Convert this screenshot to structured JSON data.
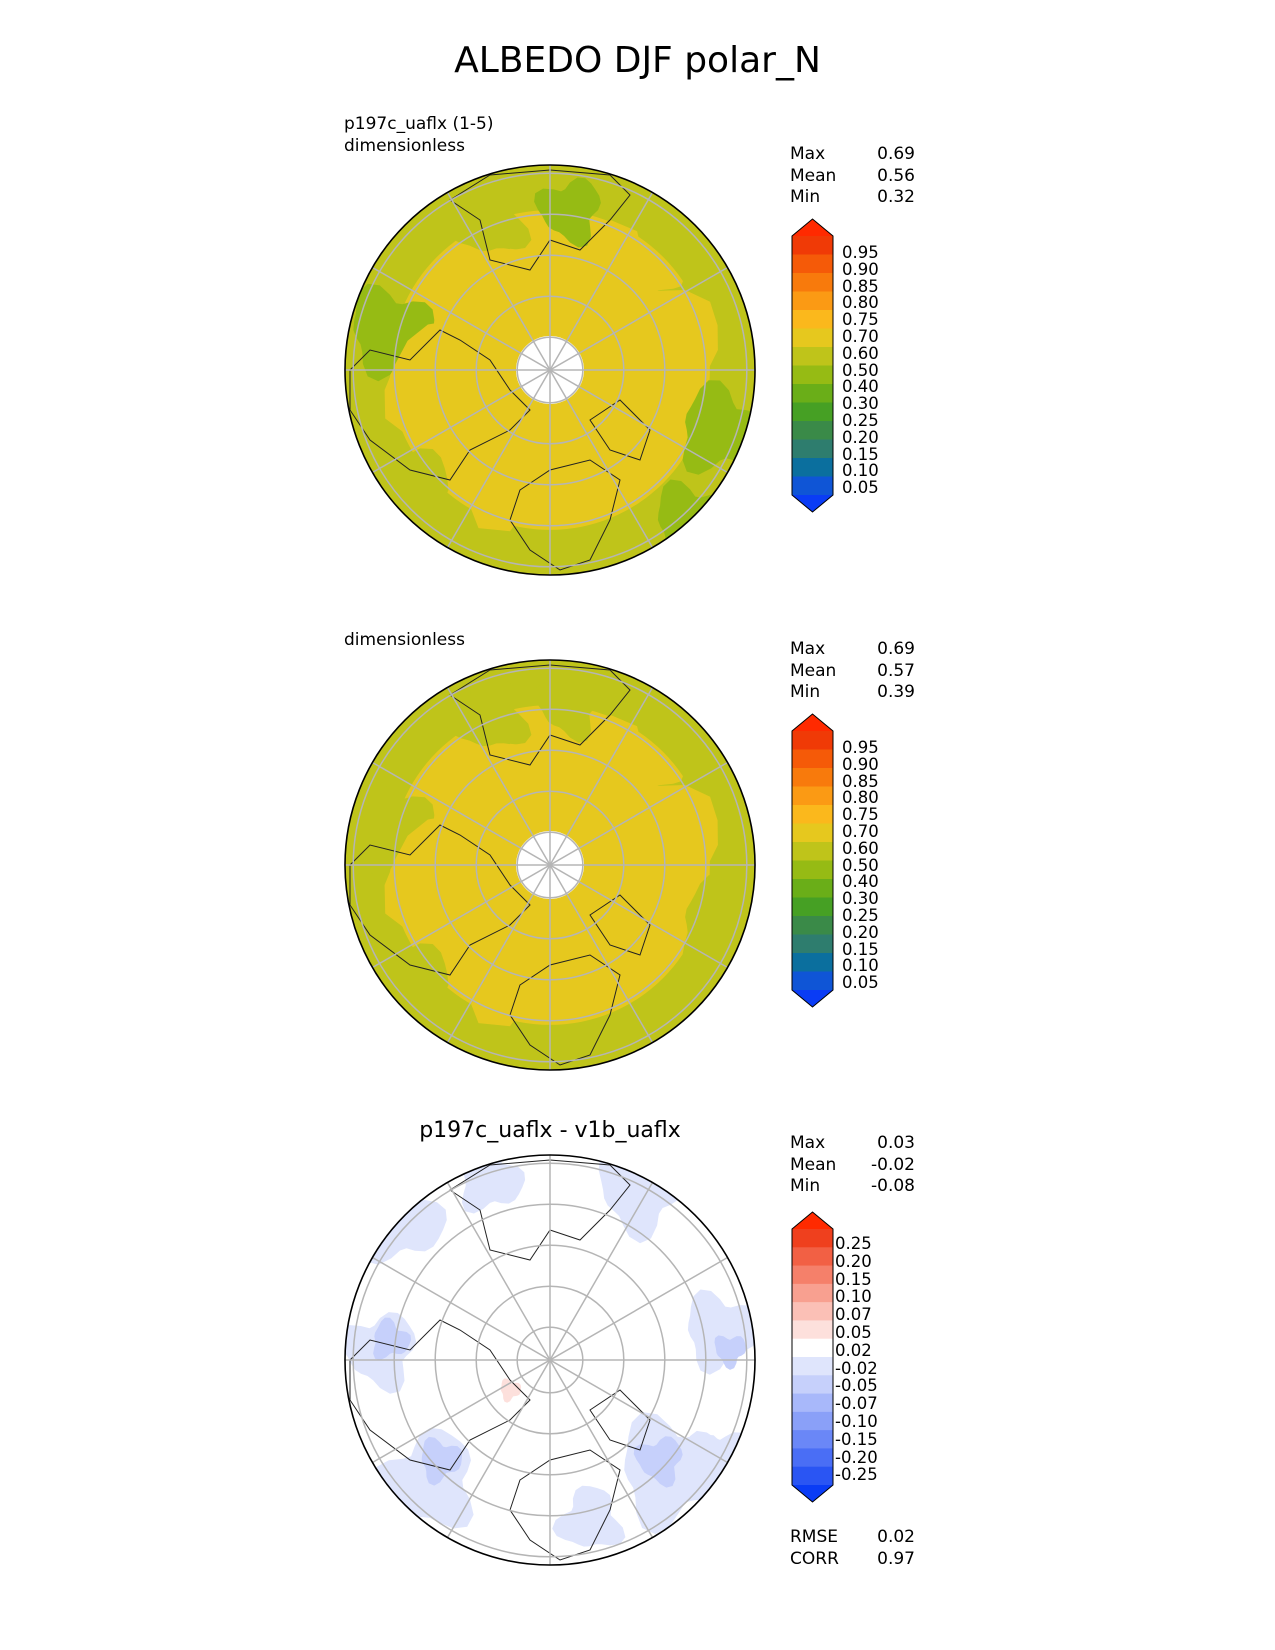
{
  "figure": {
    "title": "ALBEDO DJF polar_N"
  },
  "panels": [
    {
      "top_label_line1": "p197c_uaflx (1-5)",
      "top_label_line2": "dimensionless",
      "center_title": "",
      "stats": [
        {
          "label": "Max",
          "value": "0.69"
        },
        {
          "label": "Mean",
          "value": "0.56"
        },
        {
          "label": "Min",
          "value": "0.32"
        }
      ],
      "colorbar_ticks": [
        "0.95",
        "0.90",
        "0.85",
        "0.80",
        "0.75",
        "0.70",
        "0.60",
        "0.50",
        "0.40",
        "0.30",
        "0.25",
        "0.20",
        "0.15",
        "0.10",
        "0.05"
      ]
    },
    {
      "top_label_line1": "",
      "top_label_line2": "dimensionless",
      "center_title": "",
      "stats": [
        {
          "label": "Max",
          "value": "0.69"
        },
        {
          "label": "Mean",
          "value": "0.57"
        },
        {
          "label": "Min",
          "value": "0.39"
        }
      ],
      "colorbar_ticks": [
        "0.95",
        "0.90",
        "0.85",
        "0.80",
        "0.75",
        "0.70",
        "0.60",
        "0.50",
        "0.40",
        "0.30",
        "0.25",
        "0.20",
        "0.15",
        "0.10",
        "0.05"
      ]
    },
    {
      "top_label_line1": "",
      "top_label_line2": "",
      "center_title": "p197c_uaflx - v1b_uaflx",
      "stats": [
        {
          "label": "Max",
          "value": "0.03"
        },
        {
          "label": "Mean",
          "value": "-0.02"
        },
        {
          "label": "Min",
          "value": "-0.08"
        }
      ],
      "colorbar_ticks": [
        "0.25",
        "0.20",
        "0.15",
        "0.10",
        "0.07",
        "0.05",
        "0.02",
        "-0.02",
        "-0.05",
        "-0.07",
        "-0.10",
        "-0.15",
        "-0.20",
        "-0.25"
      ],
      "metrics": [
        {
          "label": "RMSE",
          "value": "0.02"
        },
        {
          "label": "CORR",
          "value": "0.97"
        }
      ]
    }
  ],
  "chart_data": [
    {
      "type": "heatmap",
      "projection": "north polar stereographic",
      "title": "p197c_uaflx (1-5)",
      "units": "dimensionless",
      "stats": {
        "max": 0.69,
        "mean": 0.56,
        "min": 0.32
      },
      "levels": [
        0.05,
        0.1,
        0.15,
        0.2,
        0.25,
        0.3,
        0.4,
        0.5,
        0.6,
        0.7,
        0.75,
        0.8,
        0.85,
        0.9,
        0.95
      ],
      "colors": [
        "#0a3cf5",
        "#0f55d6",
        "#0b6f9e",
        "#2e7d6e",
        "#3a8a48",
        "#46a024",
        "#6aae18",
        "#96bb14",
        "#bfc41a",
        "#e6c81e",
        "#fbb81c",
        "#fb9a14",
        "#f87a0c",
        "#f55a08",
        "#f03a06",
        "#ff2a00"
      ],
      "dominant_ranges": {
        "arctic_and_land": "0.60-0.70",
        "lower_latitudes": "0.50-0.60"
      }
    },
    {
      "type": "heatmap",
      "projection": "north polar stereographic",
      "units": "dimensionless",
      "stats": {
        "max": 0.69,
        "mean": 0.57,
        "min": 0.39
      },
      "levels": [
        0.05,
        0.1,
        0.15,
        0.2,
        0.25,
        0.3,
        0.4,
        0.5,
        0.6,
        0.7,
        0.75,
        0.8,
        0.85,
        0.9,
        0.95
      ],
      "colors": [
        "#0a3cf5",
        "#0f55d6",
        "#0b6f9e",
        "#2e7d6e",
        "#3a8a48",
        "#46a024",
        "#6aae18",
        "#96bb14",
        "#bfc41a",
        "#e6c81e",
        "#fbb81c",
        "#fb9a14",
        "#f87a0c",
        "#f55a08",
        "#f03a06",
        "#ff2a00"
      ],
      "dominant_ranges": {
        "arctic_and_land": "0.60-0.70",
        "lower_latitudes": "0.50-0.60"
      }
    },
    {
      "type": "heatmap",
      "projection": "north polar stereographic",
      "title": "p197c_uaflx - v1b_uaflx",
      "stats": {
        "max": 0.03,
        "mean": -0.02,
        "min": -0.08,
        "rmse": 0.02,
        "corr": 0.97
      },
      "levels": [
        -0.25,
        -0.2,
        -0.15,
        -0.1,
        -0.07,
        -0.05,
        -0.02,
        0.02,
        0.05,
        0.07,
        0.1,
        0.15,
        0.2,
        0.25
      ],
      "colors": [
        "#0a3cf5",
        "#2a55f3",
        "#4a6ef5",
        "#6a87f7",
        "#8aa0f8",
        "#a8b8fa",
        "#c6d0fb",
        "#dfe5fc",
        "#ffffff",
        "#fde0dc",
        "#fbc0b6",
        "#f8a090",
        "#f5806a",
        "#f26044",
        "#ef401e",
        "#ff2a00"
      ],
      "dominant_ranges": {
        "most_of_domain": "-0.02-0.02",
        "mid_latitudes": "-0.05--0.02"
      }
    }
  ]
}
